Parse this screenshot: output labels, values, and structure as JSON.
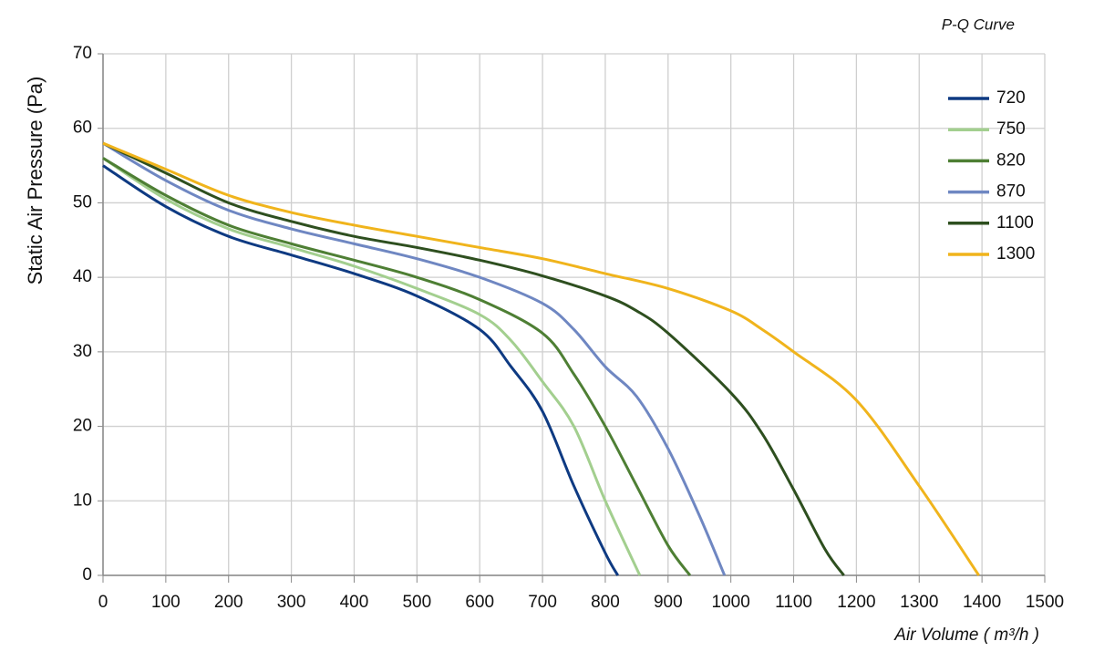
{
  "chart_data": {
    "type": "line",
    "title": "P-Q Curve",
    "x_label": "Air Volume ( m³/h )",
    "y_label": "Static Air Pressure  (Pa)",
    "xlim": [
      0,
      1500
    ],
    "xticks": [
      0,
      100,
      200,
      300,
      400,
      500,
      600,
      700,
      800,
      900,
      1000,
      1100,
      1200,
      1300,
      1400,
      1500
    ],
    "ylim": [
      0,
      70
    ],
    "yticks": [
      0,
      10,
      20,
      30,
      40,
      50,
      60,
      70
    ],
    "grid": true,
    "legend": "upper right",
    "series": [
      {
        "name": "720",
        "color": "#0e3a82",
        "x": [
          0,
          100,
          200,
          300,
          400,
          500,
          600,
          650,
          700,
          750,
          800,
          820
        ],
        "values": [
          55,
          49.5,
          45.5,
          43,
          40.5,
          37.5,
          33,
          28,
          22,
          12,
          3,
          0
        ]
      },
      {
        "name": "750",
        "color": "#a3cf8f",
        "x": [
          0,
          100,
          200,
          300,
          400,
          500,
          600,
          650,
          700,
          750,
          800,
          855
        ],
        "values": [
          56,
          50.5,
          46.5,
          44,
          41.5,
          38.5,
          35,
          31.5,
          26,
          20,
          10,
          0
        ]
      },
      {
        "name": "820",
        "color": "#4e7f34",
        "x": [
          0,
          100,
          200,
          300,
          400,
          500,
          600,
          700,
          750,
          800,
          850,
          900,
          935
        ],
        "values": [
          56,
          51,
          47,
          44.5,
          42.3,
          40,
          37,
          32.5,
          27,
          20,
          12,
          4,
          0
        ]
      },
      {
        "name": "870",
        "color": "#6f87c2",
        "x": [
          0,
          100,
          200,
          300,
          400,
          500,
          600,
          700,
          750,
          800,
          850,
          900,
          950,
          990
        ],
        "values": [
          58,
          53,
          49,
          46.5,
          44.5,
          42.5,
          40,
          36.5,
          33,
          28,
          24,
          17,
          8,
          0
        ]
      },
      {
        "name": "1100",
        "color": "#2e4f1f",
        "x": [
          0,
          100,
          200,
          300,
          400,
          500,
          600,
          700,
          800,
          850,
          900,
          1000,
          1050,
          1100,
          1150,
          1180
        ],
        "values": [
          58,
          54,
          50,
          47.5,
          45.5,
          44,
          42.3,
          40.2,
          37.5,
          35.5,
          32.5,
          24.5,
          19,
          11.5,
          3.5,
          0
        ]
      },
      {
        "name": "1300",
        "color": "#f0b41c",
        "x": [
          0,
          100,
          200,
          300,
          400,
          500,
          600,
          700,
          800,
          900,
          1000,
          1050,
          1100,
          1200,
          1300,
          1395
        ],
        "values": [
          58,
          54.5,
          51,
          48.7,
          47,
          45.5,
          44,
          42.5,
          40.5,
          38.5,
          35.5,
          33,
          30,
          23.5,
          12,
          0
        ]
      }
    ]
  }
}
